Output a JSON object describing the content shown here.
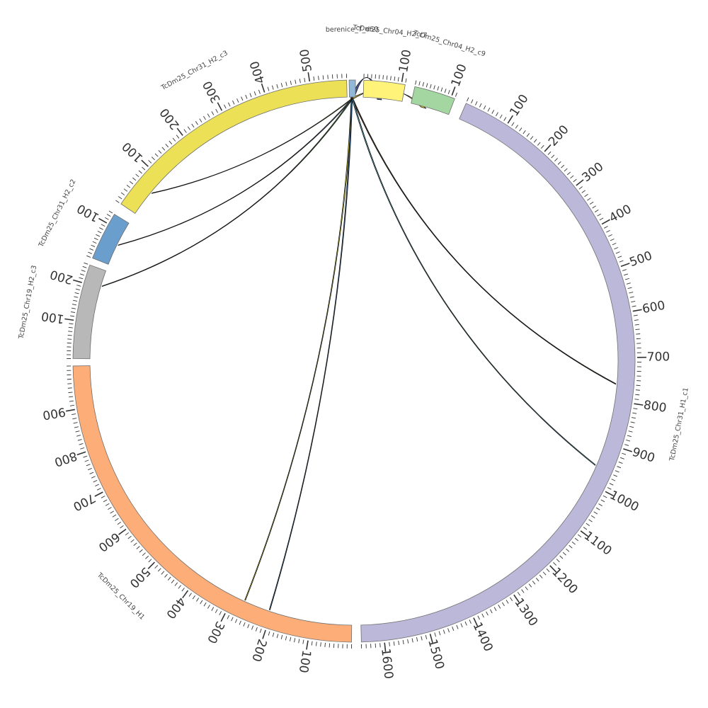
{
  "diagram": {
    "type": "circos",
    "segments": [
      {
        "id": "berenice",
        "label": "berenice_T_d50",
        "color": "#92b8d8",
        "start_deg": -1.0,
        "end_deg": 0.3,
        "length": 10,
        "ticks": []
      },
      {
        "id": "chr04_c7",
        "label": "TcDm25_Chr04_H2_c7",
        "color": "#fff37a",
        "start_deg": 2.0,
        "end_deg": 10.5,
        "length": 110,
        "ticks": [
          100
        ]
      },
      {
        "id": "chr04_c9",
        "label": "TcDm25_Chr04_H2_c9",
        "color": "#a3d6a0",
        "start_deg": 12.5,
        "end_deg": 21.0,
        "length": 110,
        "ticks": [
          100
        ]
      },
      {
        "id": "chr31_h1",
        "label": "TcDm25_Chr31_H1_c1",
        "color": "#bcb8d9",
        "start_deg": 23.5,
        "end_deg": 178.5,
        "length": 1650,
        "ticks": [
          100,
          200,
          300,
          400,
          500,
          600,
          700,
          800,
          900,
          1000,
          1100,
          1200,
          1300,
          1400,
          1500,
          1600
        ]
      },
      {
        "id": "chr19_h1",
        "label": "TcDm25_Chr19_H1",
        "color": "#fdae78",
        "start_deg": 180.5,
        "end_deg": 269.0,
        "length": 1000,
        "ticks": [
          100,
          200,
          300,
          400,
          500,
          600,
          700,
          800,
          900
        ]
      },
      {
        "id": "chr19_c3",
        "label": "TcDm25_Chr19_H2_c3",
        "color": "#b8b8b8",
        "start_deg": 270.5,
        "end_deg": 290.0,
        "length": 250,
        "ticks": [
          100,
          200
        ]
      },
      {
        "id": "chr31_c2",
        "label": "TcDm25_Chr31_H2_c2",
        "color": "#6a9fcd",
        "start_deg": 291.5,
        "end_deg": 301.5,
        "length": 130,
        "ticks": [
          100
        ]
      },
      {
        "id": "chr31_c3",
        "label": "TcDm25_Chr31_H2_c3",
        "color": "#ebe056",
        "start_deg": 304.0,
        "end_deg": 358.5,
        "length": 580,
        "ticks": [
          100,
          200,
          300,
          400,
          500
        ]
      }
    ],
    "links": [
      {
        "from": "berenice",
        "from_pos": [
          2,
          8
        ],
        "to": "chr04_c7",
        "to_pos": [
          40,
          52
        ],
        "color": "#3d4f86"
      },
      {
        "from": "berenice",
        "from_pos": [
          2,
          8
        ],
        "to": "chr04_c9",
        "to_pos": [
          30,
          45
        ],
        "color": "#c9b02a"
      },
      {
        "from": "berenice",
        "from_pos": [
          4,
          6
        ],
        "to": "chr31_h1",
        "to_pos": [
          760,
          762
        ],
        "color": "#3a2a1a"
      },
      {
        "from": "berenice",
        "from_pos": [
          4,
          6
        ],
        "to": "chr31_h1",
        "to_pos": [
          955,
          957
        ],
        "color": "#4c8e9e"
      },
      {
        "from": "berenice",
        "from_pos": [
          3,
          5
        ],
        "to": "chr19_h1",
        "to_pos": [
          270,
          272
        ],
        "color": "#c8c020"
      },
      {
        "from": "berenice",
        "from_pos": [
          3,
          5
        ],
        "to": "chr19_h1",
        "to_pos": [
          205,
          207
        ],
        "color": "#2a5a8a"
      },
      {
        "from": "berenice",
        "from_pos": [
          4,
          6
        ],
        "to": "chr19_c3",
        "to_pos": [
          205,
          207
        ],
        "color": "#4a8a40"
      },
      {
        "from": "berenice",
        "from_pos": [
          4,
          6
        ],
        "to": "chr31_c2",
        "to_pos": [
          60,
          62
        ],
        "color": "#5a6aa0"
      },
      {
        "from": "berenice",
        "from_pos": [
          4,
          6
        ],
        "to": "chr31_c3",
        "to_pos": [
          60,
          62
        ],
        "color": "#6a6a20"
      }
    ]
  }
}
